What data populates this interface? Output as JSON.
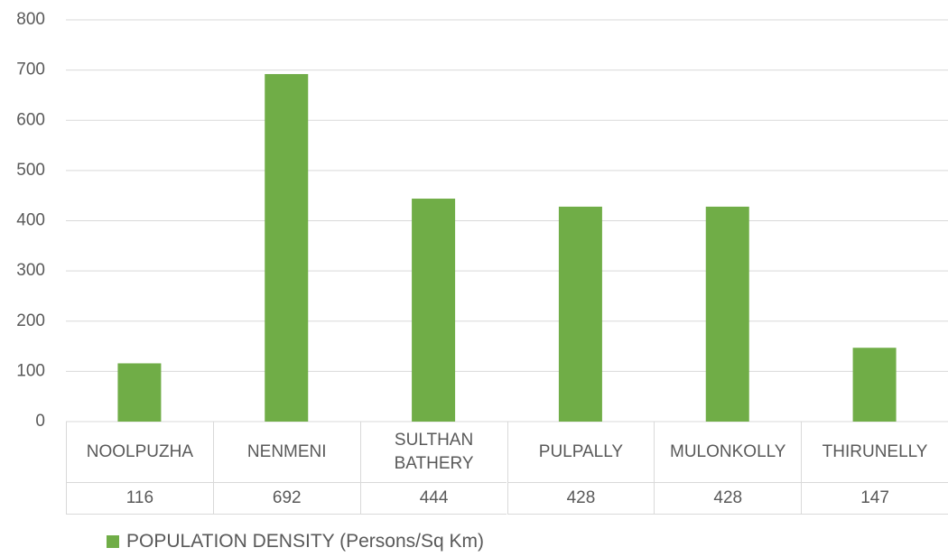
{
  "chart_data": {
    "type": "bar",
    "categories": [
      "NOOLPUZHA",
      "NENMENI",
      "SULTHAN BATHERY",
      "PULPALLY",
      "MULONKOLLY",
      "THIRUNELLY"
    ],
    "series": [
      {
        "name": "POPULATION DENSITY (Persons/Sq Km)",
        "color": "#70ad47",
        "values": [
          116,
          692,
          444,
          428,
          428,
          147
        ]
      }
    ],
    "ylim": [
      0,
      800
    ],
    "yticks": [
      0,
      100,
      200,
      300,
      400,
      500,
      600,
      700,
      800
    ],
    "grid": true,
    "legend": "bottom"
  }
}
